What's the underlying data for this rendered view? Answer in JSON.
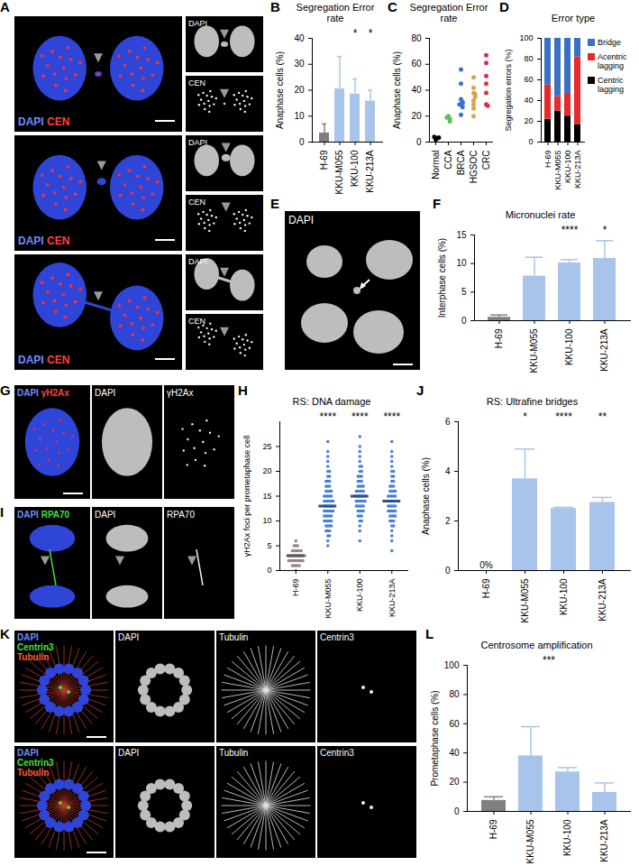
{
  "images": [
    {
      "panel": "A",
      "rows": [
        {
          "merge": [
            "DAPI",
            "CEN"
          ],
          "colors": [
            "#6f8cff",
            "#ff4040"
          ],
          "channels": [
            "DAPI",
            "CEN"
          ]
        },
        {
          "merge": [
            "DAPI",
            "CEN"
          ],
          "colors": [
            "#6f8cff",
            "#ff4040"
          ],
          "channels": [
            "DAPI",
            "CEN"
          ]
        },
        {
          "merge": [
            "DAPI",
            "CEN"
          ],
          "colors": [
            "#6f8cff",
            "#ff4040"
          ],
          "channels": [
            "DAPI",
            "CEN"
          ]
        }
      ]
    },
    {
      "panel": "E",
      "channels": [
        "DAPI"
      ]
    },
    {
      "panel": "G",
      "merge": [
        "DAPI",
        "γH2Ax"
      ],
      "colors": [
        "#6f8cff",
        "#ff4040"
      ],
      "channels": [
        "DAPI",
        "γH2Ax"
      ]
    },
    {
      "panel": "I",
      "merge": [
        "DAPI",
        "RPA70"
      ],
      "colors": [
        "#6f8cff",
        "#40e040"
      ],
      "channels": [
        "DAPI",
        "RPA70"
      ]
    },
    {
      "panel": "K",
      "rows": [
        {
          "merge": [
            "DAPI",
            "Centrin3",
            "Tubulin"
          ],
          "colors": [
            "#6f8cff",
            "#40e040",
            "#ff5a3c"
          ],
          "channels": [
            "DAPI",
            "Tubulin",
            "Centrin3"
          ]
        },
        {
          "merge": [
            "DAPI",
            "Centrin3",
            "Tubulin"
          ],
          "colors": [
            "#6f8cff",
            "#40e040",
            "#ff5a3c"
          ],
          "channels": [
            "DAPI",
            "Tubulin",
            "Centrin3"
          ]
        }
      ]
    }
  ],
  "chart_data": [
    {
      "panel": "B",
      "type": "bar",
      "title": "Segregation Error rate",
      "y_label": "Anaphase cells (%)",
      "categories": [
        "H-69",
        "KKU-M055",
        "KKU-100",
        "KKU-213A"
      ],
      "values": [
        3.5,
        20.5,
        18.5,
        15.8
      ],
      "errors": [
        3.5,
        12.5,
        5.8,
        4.2
      ],
      "colors": [
        "#808080",
        "#a9c4eb",
        "#a9c4eb",
        "#a9c4eb"
      ],
      "significance": [
        null,
        null,
        "*",
        "*"
      ],
      "ylim": [
        0,
        40
      ],
      "yticks": [
        0,
        10,
        20,
        30,
        40
      ]
    },
    {
      "panel": "C",
      "type": "scatter",
      "title": "Segregation Error rate",
      "y_label": "Anaphase cells (%)",
      "categories": [
        "Normal",
        "CCA",
        "BRCA",
        "HGSOC",
        "CRC"
      ],
      "values": [
        [
          2,
          3,
          4,
          3.5
        ],
        [
          20,
          18,
          16,
          19
        ],
        [
          56,
          45,
          33,
          31,
          30,
          29,
          27,
          21
        ],
        [
          50,
          42,
          38,
          37,
          35,
          32,
          29,
          26,
          20
        ],
        [
          67,
          61,
          51,
          45,
          38,
          29,
          28
        ]
      ],
      "colors": [
        "#000000",
        "#5cbf5c",
        "#3d72c8",
        "#d9a441",
        "#d9304a"
      ],
      "ylim": [
        0,
        80
      ],
      "yticks": [
        0,
        20,
        40,
        60,
        80
      ]
    },
    {
      "panel": "D",
      "type": "bar",
      "stacked": true,
      "title": "Error type",
      "y_label": "Segregation errors (%)",
      "categories": [
        "H-69",
        "KKU-M055",
        "KKU-100",
        "KKU-213A"
      ],
      "series": [
        {
          "name": "Centric lagging",
          "color": "#000000",
          "values": [
            22,
            30,
            25,
            17
          ]
        },
        {
          "name": "Acentric lagging",
          "color": "#e8292b",
          "values": [
            33,
            14,
            22,
            65
          ]
        },
        {
          "name": "Bridge",
          "color": "#3a6fc2",
          "values": [
            45,
            56,
            53,
            18
          ]
        }
      ],
      "legend": "right",
      "ylim": [
        0,
        100
      ],
      "yticks": [
        0,
        20,
        40,
        60,
        80,
        100
      ]
    },
    {
      "panel": "F",
      "type": "bar",
      "title": "Micronuclei rate",
      "y_label": "Interphase cells (%)",
      "categories": [
        "H-69",
        "KKU-M055",
        "KKU-100",
        "KKU-213A"
      ],
      "values": [
        0.6,
        7.8,
        10.1,
        10.9
      ],
      "errors": [
        0.4,
        3.3,
        0.6,
        3.1
      ],
      "colors": [
        "#808080",
        "#a9c4eb",
        "#a9c4eb",
        "#a9c4eb"
      ],
      "significance": [
        null,
        null,
        "****",
        "*"
      ],
      "ylim": [
        0,
        15
      ],
      "yticks": [
        0,
        5,
        10,
        15
      ]
    },
    {
      "panel": "H",
      "type": "strip",
      "title": "RS: DNA damage",
      "y_label": "γH2Ax foci per prometaphase cell",
      "categories": [
        "H-69",
        "KKU-M055",
        "KKU-100",
        "KKU-213A"
      ],
      "values": [
        [
          0,
          1,
          1,
          1,
          1,
          1,
          2,
          2,
          2,
          2,
          2,
          2,
          2,
          2,
          2,
          3,
          3,
          3,
          3,
          3,
          3,
          3,
          3,
          3,
          3,
          4,
          4,
          4,
          4,
          4,
          4,
          5,
          5,
          5,
          6
        ],
        [
          5,
          6,
          7,
          7,
          8,
          8,
          8,
          9,
          9,
          9,
          9,
          10,
          10,
          10,
          10,
          10,
          11,
          11,
          11,
          11,
          11,
          12,
          12,
          12,
          12,
          12,
          12,
          13,
          13,
          13,
          13,
          13,
          13,
          14,
          14,
          14,
          14,
          14,
          14,
          15,
          15,
          15,
          15,
          15,
          16,
          16,
          16,
          16,
          17,
          17,
          17,
          18,
          18,
          18,
          19,
          19,
          20,
          20,
          21,
          22,
          23,
          24,
          26
        ],
        [
          6,
          8,
          9,
          10,
          10,
          11,
          11,
          11,
          12,
          12,
          12,
          12,
          13,
          13,
          13,
          13,
          13,
          14,
          14,
          14,
          14,
          14,
          14,
          15,
          15,
          15,
          15,
          15,
          15,
          15,
          16,
          16,
          16,
          16,
          16,
          17,
          17,
          17,
          17,
          18,
          18,
          18,
          19,
          19,
          19,
          20,
          20,
          21,
          21,
          22,
          23,
          24,
          25,
          27
        ],
        [
          4,
          6,
          7,
          8,
          9,
          9,
          10,
          10,
          10,
          11,
          11,
          11,
          11,
          12,
          12,
          12,
          12,
          12,
          13,
          13,
          13,
          13,
          13,
          14,
          14,
          14,
          14,
          14,
          14,
          15,
          15,
          15,
          15,
          15,
          16,
          16,
          16,
          16,
          17,
          17,
          17,
          18,
          18,
          19,
          19,
          20,
          20,
          21,
          22,
          23,
          24,
          26
        ]
      ],
      "colors": [
        "#9a8585",
        "#4a80d4",
        "#4a80d4",
        "#4a80d4"
      ],
      "significance": [
        null,
        "****",
        "****",
        "****"
      ],
      "ylim": [
        0,
        30
      ],
      "yticks": [
        0,
        5,
        10,
        15,
        20,
        25
      ]
    },
    {
      "panel": "J",
      "type": "bar",
      "title": "RS: Ultrafine bridges",
      "y_label": "Anaphase cells (%)",
      "categories": [
        "H-69",
        "KKU-M055",
        "KKU-100",
        "KKU-213A"
      ],
      "values": [
        0,
        3.7,
        2.5,
        2.75
      ],
      "errors": [
        null,
        1.2,
        0.05,
        0.2
      ],
      "value_labels": [
        "0%",
        null,
        null,
        null
      ],
      "colors": [
        "#808080",
        "#a9c4eb",
        "#a9c4eb",
        "#a9c4eb"
      ],
      "significance": [
        null,
        "*",
        "****",
        "**"
      ],
      "ylim": [
        0,
        6
      ],
      "yticks": [
        0,
        2,
        4,
        6
      ]
    },
    {
      "panel": "L",
      "type": "bar",
      "title": "Centrosome amplification",
      "y_label": "Prometaphase cells (%)",
      "categories": [
        "H-69",
        "KKU-M055",
        "KKU-100",
        "KKU-213A"
      ],
      "values": [
        7.5,
        38,
        27,
        13
      ],
      "errors": [
        2.5,
        20,
        3,
        6.5
      ],
      "colors": [
        "#808080",
        "#a9c4eb",
        "#a9c4eb",
        "#a9c4eb"
      ],
      "annotation": "***",
      "ylim": [
        0,
        100
      ],
      "yticks": [
        0,
        20,
        40,
        60,
        80,
        100
      ]
    }
  ]
}
